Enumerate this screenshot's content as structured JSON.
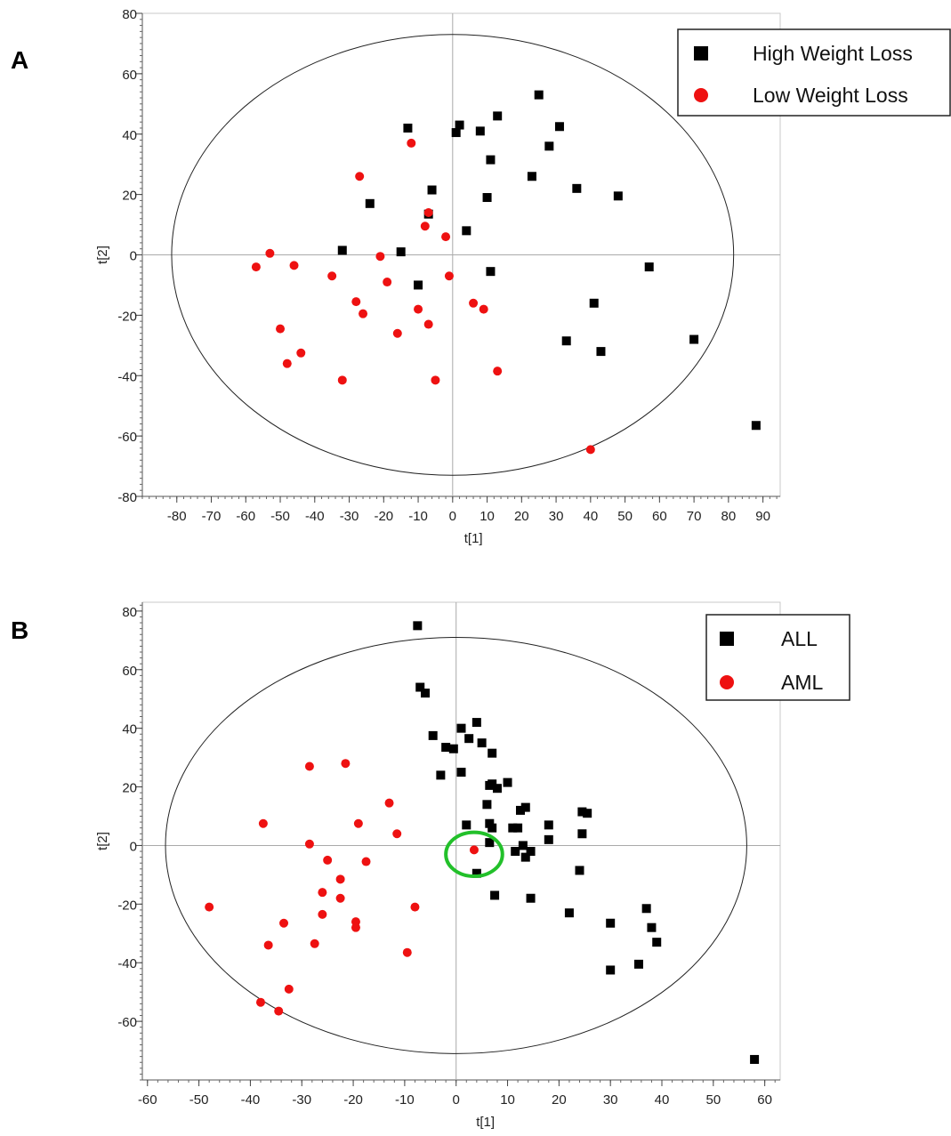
{
  "panels": [
    {
      "letter": "A"
    },
    {
      "letter": "B"
    }
  ],
  "chart_data": [
    {
      "type": "scatter",
      "panel": "A",
      "title": "",
      "xlabel": "t[1]",
      "ylabel": "t[2]",
      "xlim": [
        -90,
        95
      ],
      "ylim": [
        -80,
        80
      ],
      "xticks": [
        -80,
        -70,
        -60,
        -50,
        -40,
        -30,
        -20,
        -10,
        0,
        10,
        20,
        30,
        40,
        50,
        60,
        70,
        80,
        90
      ],
      "yticks": [
        -80,
        -60,
        -40,
        -20,
        0,
        20,
        40,
        60,
        80
      ],
      "ellipse": {
        "rx": 81.5,
        "ry": 73
      },
      "legend_position": "top-right",
      "series": [
        {
          "name": "High Weight Loss",
          "marker": "square",
          "color": "#000000",
          "points": [
            [
              -13,
              42
            ],
            [
              2,
              43
            ],
            [
              1,
              40.5
            ],
            [
              8,
              41
            ],
            [
              13,
              46
            ],
            [
              25,
              53
            ],
            [
              28,
              36
            ],
            [
              31,
              42.5
            ],
            [
              11,
              31.5
            ],
            [
              23,
              26
            ],
            [
              36,
              22
            ],
            [
              48,
              19.5
            ],
            [
              10,
              19
            ],
            [
              -6,
              21.5
            ],
            [
              -7,
              13.5
            ],
            [
              -24,
              17
            ],
            [
              4,
              8
            ],
            [
              -32,
              1.5
            ],
            [
              -15,
              1
            ],
            [
              57,
              -4
            ],
            [
              11,
              -5.5
            ],
            [
              -10,
              -10
            ],
            [
              41,
              -16
            ],
            [
              33,
              -28.5
            ],
            [
              43,
              -32
            ],
            [
              70,
              -28
            ],
            [
              88,
              -56.5
            ]
          ]
        },
        {
          "name": "Low Weight Loss",
          "marker": "circle",
          "color": "#ee1111",
          "points": [
            [
              -12,
              37
            ],
            [
              -27,
              26
            ],
            [
              -7,
              14
            ],
            [
              -8,
              9.5
            ],
            [
              -2,
              6
            ],
            [
              -53,
              0.5
            ],
            [
              -57,
              -4
            ],
            [
              -46,
              -3.5
            ],
            [
              -21,
              -0.5
            ],
            [
              -35,
              -7
            ],
            [
              -1,
              -7
            ],
            [
              -19,
              -9
            ],
            [
              -28,
              -15.5
            ],
            [
              -26,
              -19.5
            ],
            [
              -10,
              -18
            ],
            [
              6,
              -16
            ],
            [
              9,
              -18
            ],
            [
              -7,
              -23
            ],
            [
              -50,
              -24.5
            ],
            [
              -16,
              -26
            ],
            [
              -44,
              -32.5
            ],
            [
              -48,
              -36
            ],
            [
              -32,
              -41.5
            ],
            [
              -5,
              -41.5
            ],
            [
              13,
              -38.5
            ],
            [
              40,
              -64.5
            ]
          ]
        }
      ]
    },
    {
      "type": "scatter",
      "panel": "B",
      "title": "",
      "xlabel": "t[1]",
      "ylabel": "t[2]",
      "xlim": [
        -61,
        63
      ],
      "ylim": [
        -80,
        83
      ],
      "xticks": [
        -60,
        -50,
        -40,
        -30,
        -20,
        -10,
        0,
        10,
        20,
        30,
        40,
        50,
        60
      ],
      "yticks": [
        -60,
        -40,
        -20,
        0,
        20,
        40,
        60,
        80
      ],
      "ellipse": {
        "rx": 56.5,
        "ry": 71
      },
      "legend_position": "top-right",
      "highlight_ring": {
        "cx": 3.5,
        "cy": -3,
        "rx": 5.5,
        "ry": 7.5,
        "color": "#22c02a"
      },
      "series": [
        {
          "name": "ALL",
          "marker": "square",
          "color": "#000000",
          "points": [
            [
              -7.5,
              75
            ],
            [
              -7,
              54
            ],
            [
              -6,
              52
            ],
            [
              4,
              42
            ],
            [
              1,
              40
            ],
            [
              -4.5,
              37.5
            ],
            [
              2.5,
              36.5
            ],
            [
              5,
              35
            ],
            [
              -2,
              33.5
            ],
            [
              -0.5,
              33
            ],
            [
              7,
              31.5
            ],
            [
              -3,
              24
            ],
            [
              1,
              25
            ],
            [
              10,
              21.5
            ],
            [
              7,
              21
            ],
            [
              6.5,
              20.5
            ],
            [
              8,
              19.5
            ],
            [
              6,
              14
            ],
            [
              13.5,
              13
            ],
            [
              12.5,
              12
            ],
            [
              24.5,
              11.5
            ],
            [
              25.5,
              11
            ],
            [
              18,
              7
            ],
            [
              2,
              7
            ],
            [
              6.5,
              7.5
            ],
            [
              7,
              6
            ],
            [
              11,
              6
            ],
            [
              12,
              6
            ],
            [
              18,
              2
            ],
            [
              24.5,
              4
            ],
            [
              6.5,
              1
            ],
            [
              13,
              0
            ],
            [
              11.5,
              -2
            ],
            [
              14.5,
              -2
            ],
            [
              13.5,
              -4
            ],
            [
              24,
              -8.5
            ],
            [
              4,
              -9.5
            ],
            [
              7.5,
              -17
            ],
            [
              14.5,
              -18
            ],
            [
              22,
              -23
            ],
            [
              30,
              -26.5
            ],
            [
              37,
              -21.5
            ],
            [
              38,
              -28
            ],
            [
              39,
              -33
            ],
            [
              30,
              -42.5
            ],
            [
              35.5,
              -40.5
            ],
            [
              58,
              -73
            ]
          ]
        },
        {
          "name": "AML",
          "marker": "circle",
          "color": "#ee1111",
          "points": [
            [
              -21.5,
              28
            ],
            [
              -28.5,
              27
            ],
            [
              -13,
              14.5
            ],
            [
              -37.5,
              7.5
            ],
            [
              -19,
              7.5
            ],
            [
              -11.5,
              4
            ],
            [
              -28.5,
              0.5
            ],
            [
              -25,
              -5
            ],
            [
              -17.5,
              -5.5
            ],
            [
              -22.5,
              -11.5
            ],
            [
              -26,
              -16
            ],
            [
              -22.5,
              -18
            ],
            [
              -48,
              -21
            ],
            [
              -8,
              -21
            ],
            [
              -26,
              -23.5
            ],
            [
              -33.5,
              -26.5
            ],
            [
              -19.5,
              -26
            ],
            [
              -19.5,
              -28
            ],
            [
              -36.5,
              -34
            ],
            [
              -27.5,
              -33.5
            ],
            [
              -9.5,
              -36.5
            ],
            [
              -32.5,
              -49
            ],
            [
              -38,
              -53.5
            ],
            [
              -34.5,
              -56.5
            ],
            [
              3.5,
              -1.5
            ]
          ]
        }
      ]
    }
  ]
}
